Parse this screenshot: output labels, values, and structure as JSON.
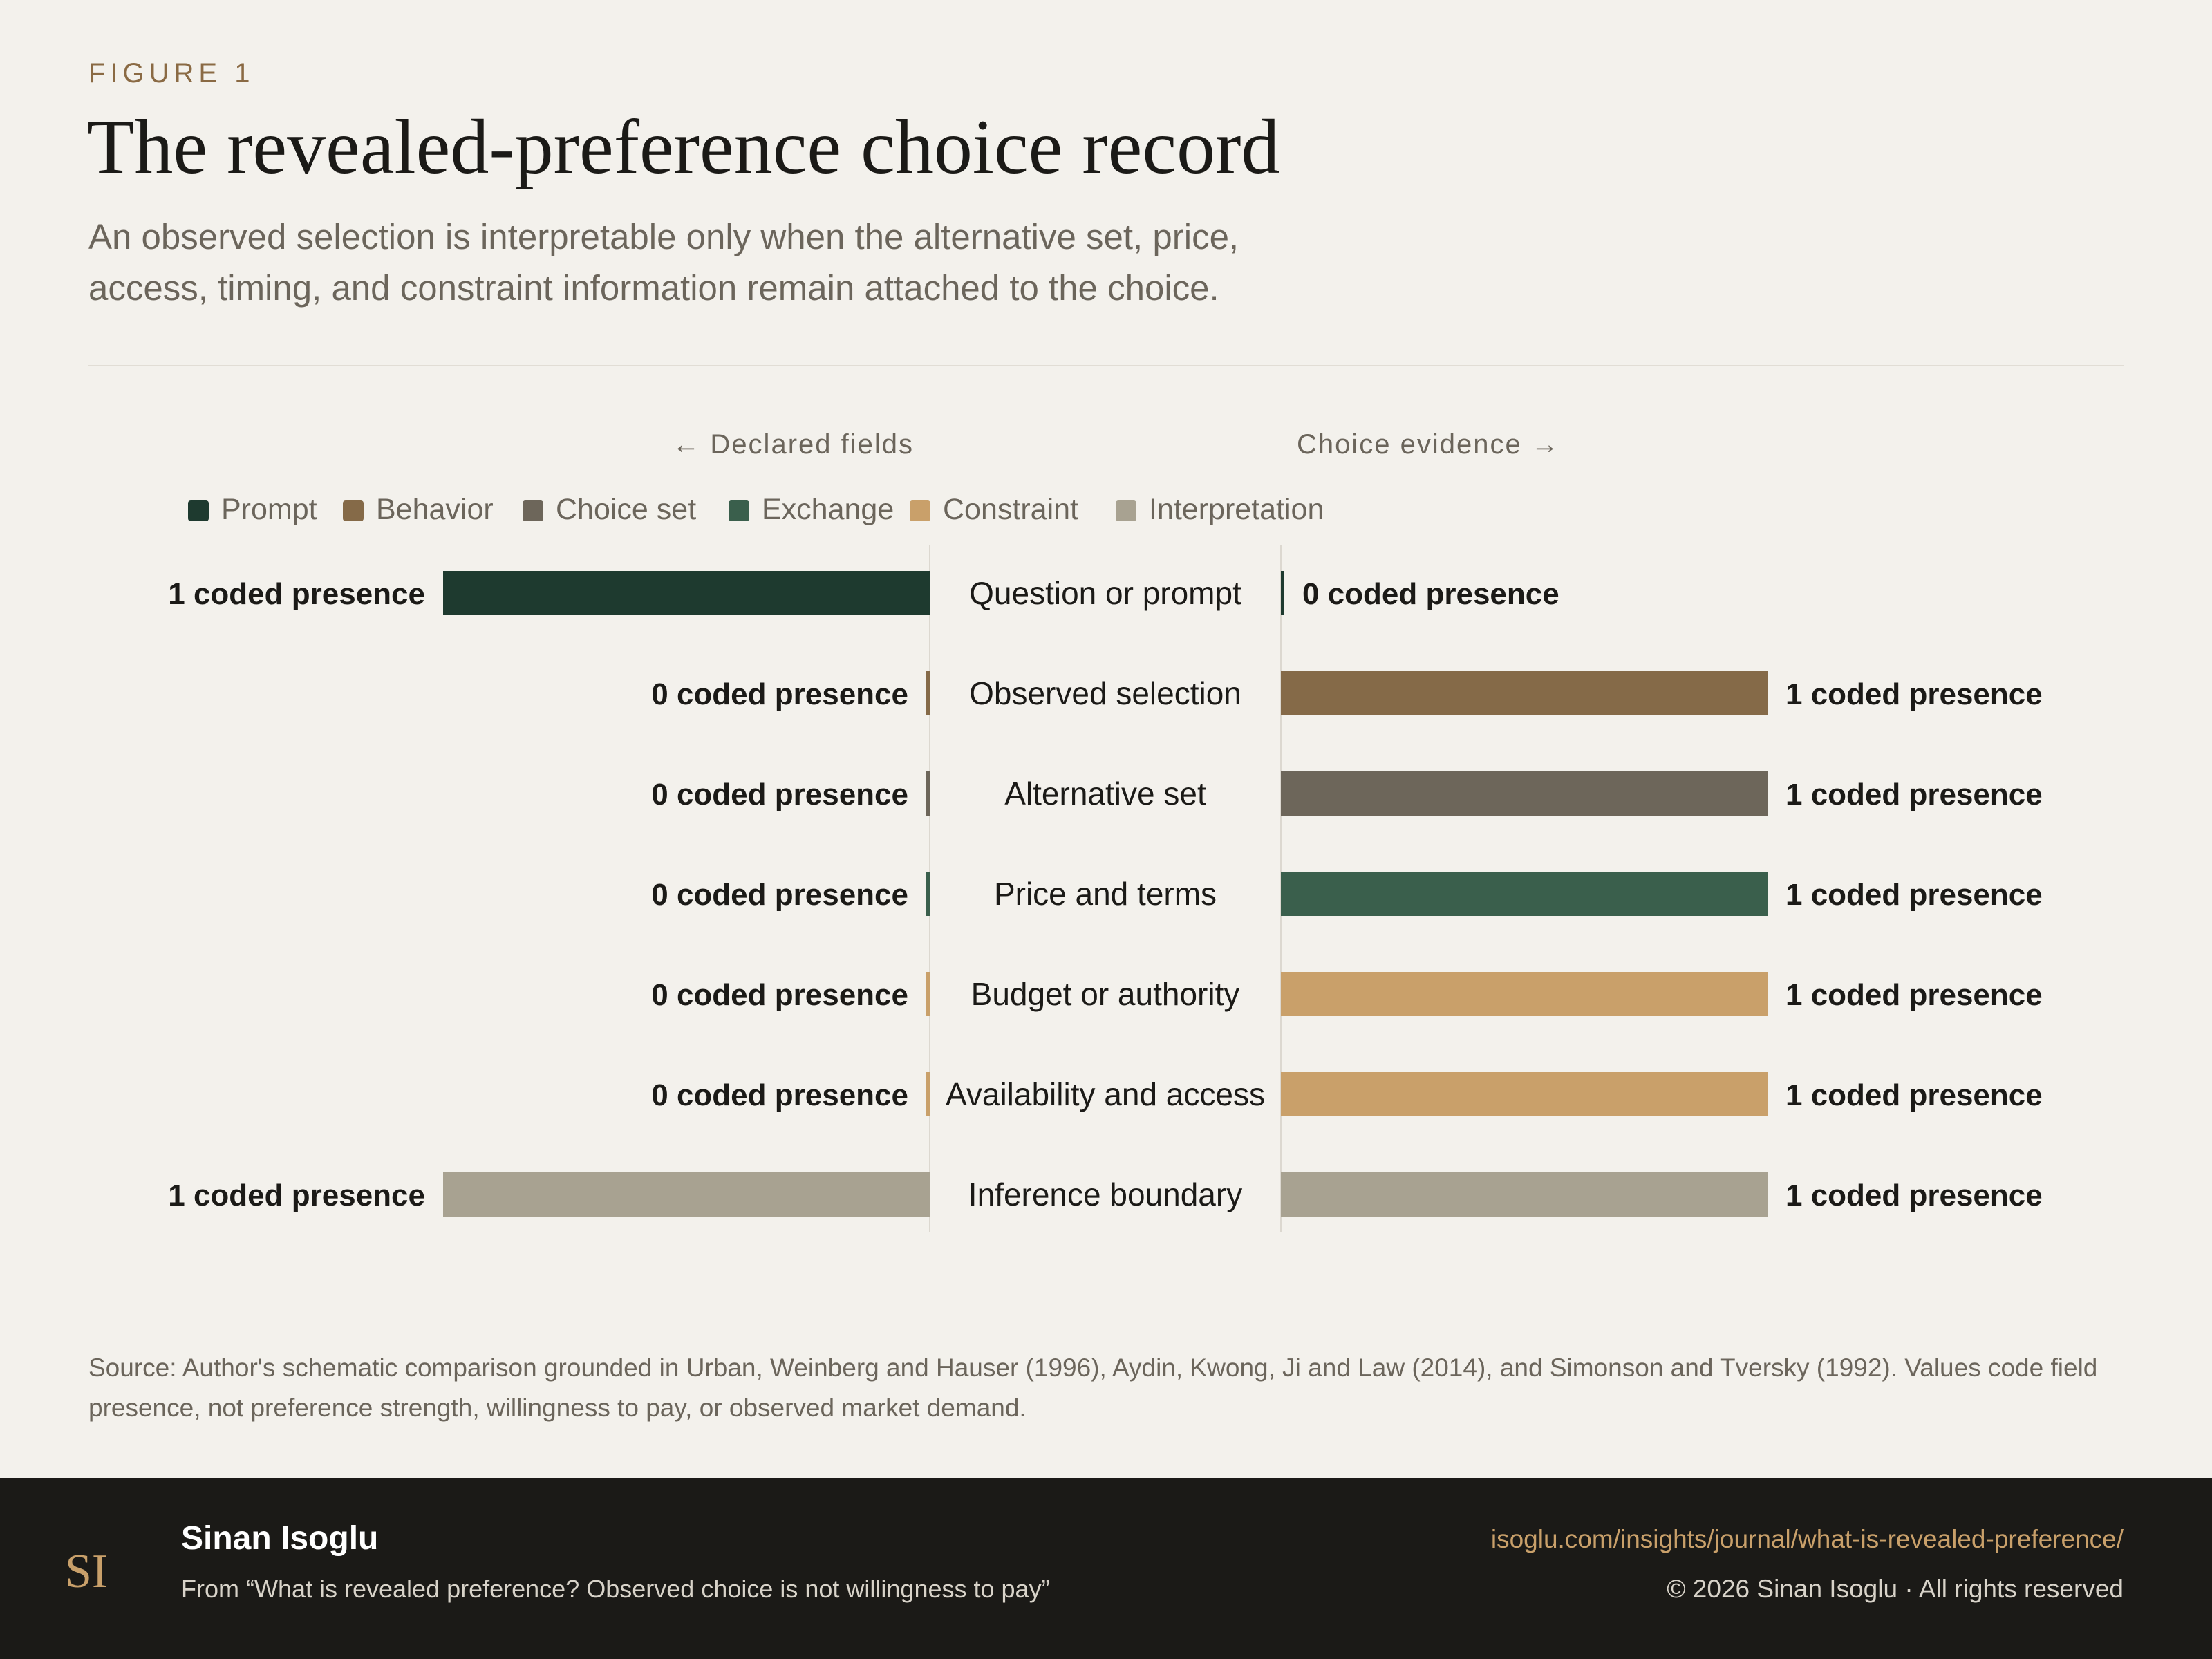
{
  "header": {
    "eyebrow": "FIGURE 1",
    "title": "The revealed-preference choice record",
    "subtitle": "An observed selection is interpretable only when the alternative set, price, access, timing, and constraint information remain attached to the choice."
  },
  "chart_data": {
    "type": "bar",
    "orientation": "horizontal-diverging",
    "left_header": "← Declared fields",
    "right_header": "Choice evidence →",
    "legend_placement": "top-left",
    "legend": [
      {
        "name": "Prompt",
        "color": "#1e3a2f"
      },
      {
        "name": "Behavior",
        "color": "#856a48"
      },
      {
        "name": "Choice set",
        "color": "#6d665a"
      },
      {
        "name": "Exchange",
        "color": "#3a5f4c"
      },
      {
        "name": "Constraint",
        "color": "#c9a06a"
      },
      {
        "name": "Interpretation",
        "color": "#a8a291"
      }
    ],
    "value_suffix": " coded presence",
    "categories": [
      "Question or prompt",
      "Observed selection",
      "Alternative set",
      "Price and terms",
      "Budget or authority",
      "Availability and access",
      "Inference boundary"
    ],
    "category_group": [
      "Prompt",
      "Behavior",
      "Choice set",
      "Exchange",
      "Constraint",
      "Constraint",
      "Interpretation"
    ],
    "series": [
      {
        "name": "Declared fields",
        "values": [
          1,
          0,
          0,
          0,
          0,
          0,
          1
        ]
      },
      {
        "name": "Choice evidence",
        "values": [
          0,
          1,
          1,
          1,
          1,
          1,
          1
        ]
      }
    ],
    "xlim": [
      0,
      1
    ],
    "grid": false
  },
  "source": "Source: Author's schematic comparison grounded in Urban, Weinberg and Hauser (1996), Aydin, Kwong, Ji and Law (2014), and Simonson and Tversky (1992). Values code field presence, not preference strength, willingness to pay, or observed market demand.",
  "footer": {
    "logo_text": "SI",
    "author": "Sinan Isoglu",
    "from": "From “What is revealed preference? Observed choice is not willingness to pay”",
    "url": "isoglu.com/insights/journal/what-is-revealed-preference/",
    "copyright": "© 2026 Sinan Isoglu · All rights reserved"
  },
  "colors": {
    "background": "#f3f1ec",
    "footer_background": "#1b1a17",
    "accent": "#c9a06a",
    "eyebrow": "#8a6a44"
  }
}
